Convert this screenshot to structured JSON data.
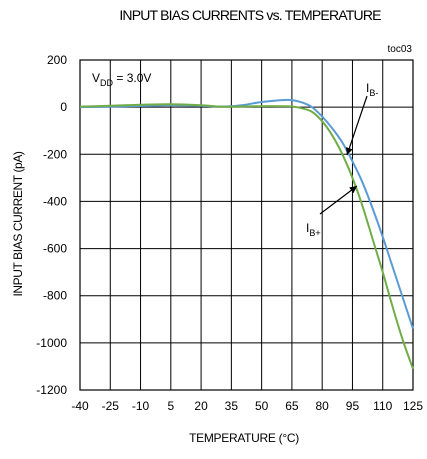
{
  "chart_data": {
    "type": "line",
    "title": "INPUT BIAS CURRENTS vs. TEMPERATURE",
    "chart_id": "toc03",
    "xlabel": "TEMPERATURE (°C)",
    "ylabel": "INPUT BIAS CURRENT (pA)",
    "xlim": [
      -40,
      125
    ],
    "ylim": [
      -1200,
      200
    ],
    "x_ticks": [
      -40,
      -25,
      -10,
      5,
      20,
      35,
      50,
      65,
      80,
      95,
      110,
      125
    ],
    "y_ticks": [
      200,
      0,
      -200,
      -400,
      -600,
      -800,
      -1000,
      -1200
    ],
    "grid": true,
    "condition": {
      "main": "V",
      "sub": "DD",
      "rest": " = 3.0V"
    },
    "series": [
      {
        "name": "I_B-",
        "label_main": "I",
        "label_sub": "B-",
        "color": "#5b9bd5",
        "points": [
          [
            -40,
            0
          ],
          [
            -25,
            2
          ],
          [
            -10,
            5
          ],
          [
            5,
            8
          ],
          [
            20,
            6
          ],
          [
            30,
            2
          ],
          [
            40,
            8
          ],
          [
            50,
            22
          ],
          [
            60,
            30
          ],
          [
            65,
            30
          ],
          [
            70,
            20
          ],
          [
            75,
            0
          ],
          [
            80,
            -40
          ],
          [
            85,
            -90
          ],
          [
            90,
            -150
          ],
          [
            95,
            -230
          ],
          [
            100,
            -320
          ],
          [
            105,
            -430
          ],
          [
            110,
            -550
          ],
          [
            115,
            -680
          ],
          [
            120,
            -810
          ],
          [
            125,
            -940
          ]
        ]
      },
      {
        "name": "I_B+",
        "label_main": "I",
        "label_sub": "B+",
        "color": "#70ad47",
        "points": [
          [
            -40,
            2
          ],
          [
            -25,
            6
          ],
          [
            -10,
            10
          ],
          [
            5,
            12
          ],
          [
            20,
            8
          ],
          [
            30,
            2
          ],
          [
            40,
            3
          ],
          [
            50,
            4
          ],
          [
            60,
            4
          ],
          [
            65,
            3
          ],
          [
            70,
            -5
          ],
          [
            75,
            -20
          ],
          [
            80,
            -60
          ],
          [
            85,
            -120
          ],
          [
            90,
            -200
          ],
          [
            95,
            -300
          ],
          [
            100,
            -420
          ],
          [
            105,
            -560
          ],
          [
            110,
            -700
          ],
          [
            115,
            -850
          ],
          [
            120,
            -990
          ],
          [
            125,
            -1110
          ]
        ]
      }
    ]
  }
}
